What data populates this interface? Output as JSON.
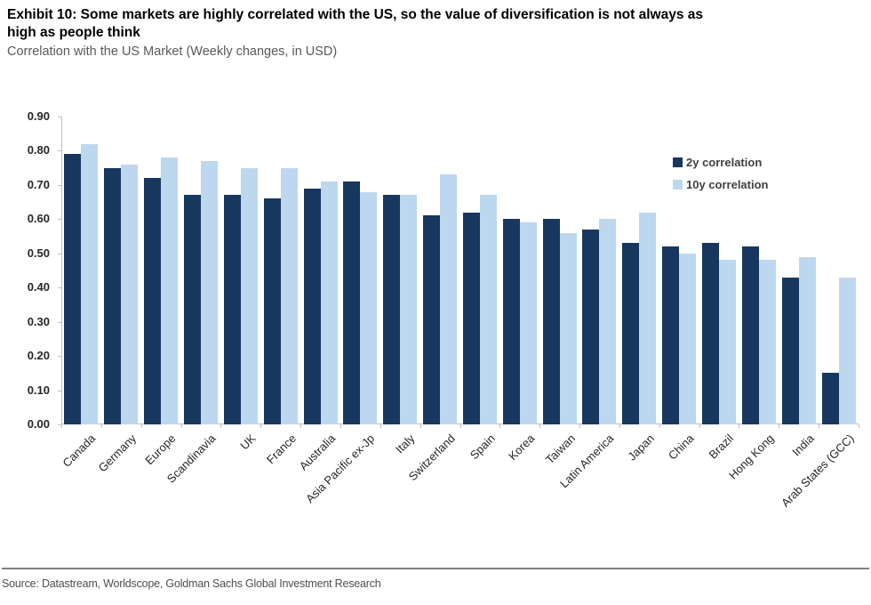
{
  "header": {
    "exhibit_title": "Exhibit 10: Some markets are highly correlated with the US, so the value of diversification is not always as\nhigh as people think",
    "subtitle": "Correlation with the US Market (Weekly changes, in USD)"
  },
  "chart_data": {
    "type": "bar",
    "title": "Correlation with the US Market (Weekly changes, in USD)",
    "categories": [
      "Canada",
      "Germany",
      "Europe",
      "Scandinavia",
      "UK",
      "France",
      "Australia",
      "Asia Pacific ex-Jp",
      "Italy",
      "Switzerland",
      "Spain",
      "Korea",
      "Taiwan",
      "Latin America",
      "Japan",
      "China",
      "Brazil",
      "Hong Kong",
      "India",
      "Arab States (GCC)"
    ],
    "series": [
      {
        "name": "2y correlation",
        "color": "#17375E",
        "values": [
          0.79,
          0.75,
          0.72,
          0.67,
          0.67,
          0.66,
          0.69,
          0.71,
          0.67,
          0.61,
          0.62,
          0.6,
          0.6,
          0.57,
          0.53,
          0.52,
          0.53,
          0.52,
          0.43,
          0.15
        ]
      },
      {
        "name": "10y correlation",
        "color": "#BDD7EE",
        "values": [
          0.82,
          0.76,
          0.78,
          0.77,
          0.75,
          0.75,
          0.71,
          0.68,
          0.67,
          0.73,
          0.67,
          0.59,
          0.56,
          0.6,
          0.62,
          0.5,
          0.48,
          0.48,
          0.49,
          0.43
        ]
      }
    ],
    "ylim": [
      0,
      0.9
    ],
    "ytick_step": 0.1,
    "ytick_labels": [
      "0.90",
      "0.80",
      "0.70",
      "0.60",
      "0.50",
      "0.40",
      "0.30",
      "0.20",
      "0.10",
      "0.00"
    ],
    "grid": false,
    "legend_position": "top-right",
    "axis_color": "#bfbfbf"
  },
  "footer": {
    "source": "Source: Datastream, Worldscope, Goldman Sachs Global Investment Research"
  }
}
